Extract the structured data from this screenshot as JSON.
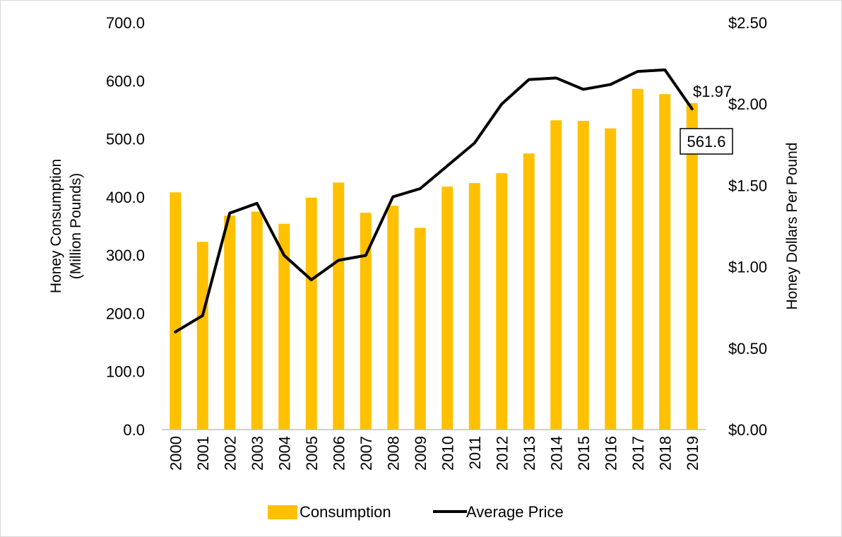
{
  "chart_data": {
    "type": "bar",
    "categories": [
      "2000",
      "2001",
      "2002",
      "2003",
      "2004",
      "2005",
      "2006",
      "2007",
      "2008",
      "2009",
      "2010",
      "2011",
      "2012",
      "2013",
      "2014",
      "2015",
      "2016",
      "2017",
      "2018",
      "2019"
    ],
    "series": [
      {
        "name": "Consumption",
        "type": "bar",
        "axis": "left",
        "color": "#FFC000",
        "values": [
          408,
          323,
          368,
          375,
          354,
          399,
          425,
          373,
          385,
          347,
          418,
          424,
          441,
          475,
          532,
          531,
          518,
          586,
          577,
          561.6
        ]
      },
      {
        "name": "Average Price",
        "type": "line",
        "axis": "right",
        "color": "#000000",
        "values": [
          0.6,
          0.7,
          1.33,
          1.39,
          1.07,
          0.92,
          1.04,
          1.07,
          1.43,
          1.48,
          1.62,
          1.76,
          2.0,
          2.15,
          2.16,
          2.09,
          2.12,
          2.2,
          2.21,
          1.97
        ]
      }
    ],
    "title": "",
    "ylabel_left": [
      "Honey Consumption",
      "(Million Pounds)"
    ],
    "ylabel_right": "Honey Dollars Per Pound",
    "ylim_left": [
      0,
      700
    ],
    "ylim_right": [
      0,
      2.5
    ],
    "yticks_left": [
      "0.0",
      "100.0",
      "200.0",
      "300.0",
      "400.0",
      "500.0",
      "600.0",
      "700.0"
    ],
    "yticks_right": [
      "$0.00",
      "$0.50",
      "$1.00",
      "$1.50",
      "$2.00",
      "$2.50"
    ],
    "annotations": [
      {
        "series": "Average Price",
        "category": "2019",
        "text": "$1.97"
      },
      {
        "series": "Consumption",
        "category": "2019",
        "text": "561.6",
        "boxed": true
      }
    ],
    "grid": false,
    "legend_position": "bottom"
  }
}
